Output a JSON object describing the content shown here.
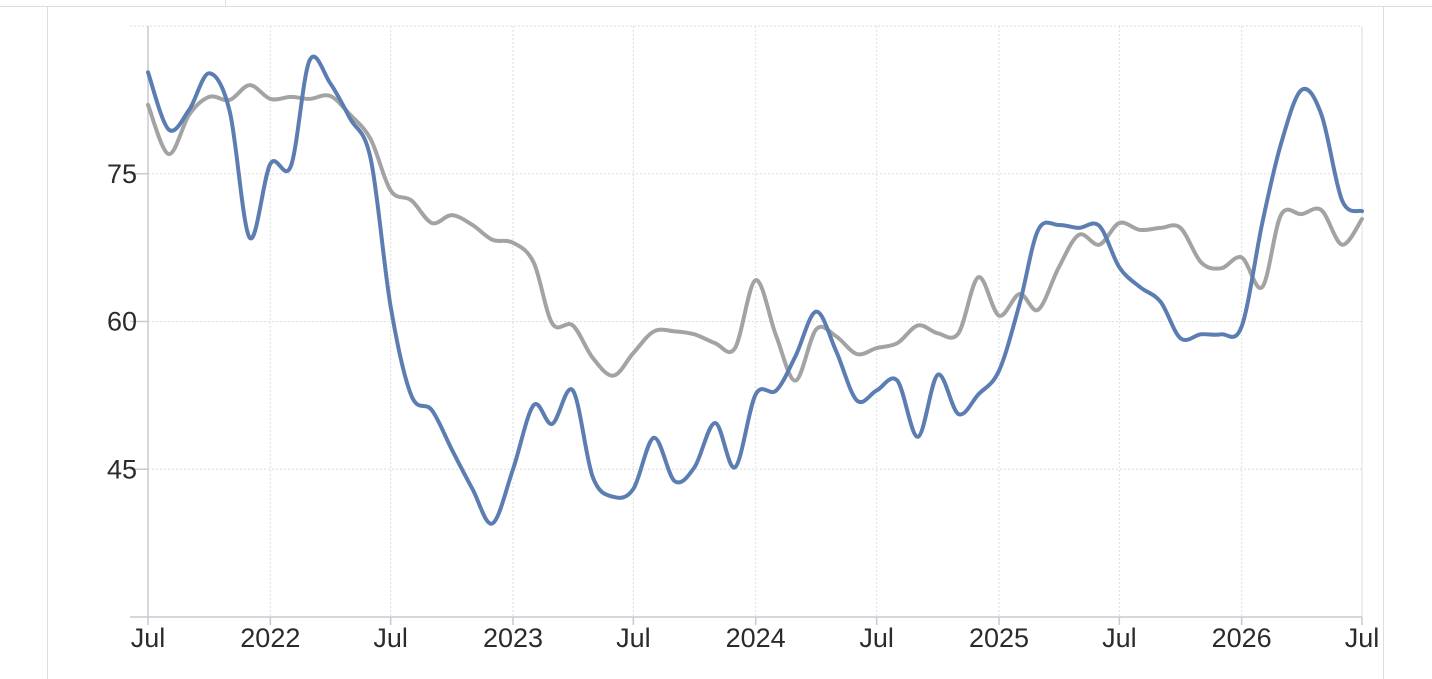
{
  "chart_data": {
    "type": "line",
    "title": "",
    "xlabel": "",
    "ylabel": "",
    "x_tick_labels": [
      "Jul",
      "2022",
      "Jul",
      "2023",
      "Jul",
      "2024",
      "Jul",
      "2025",
      "Jul",
      "2026",
      "Jul"
    ],
    "x_tick_dates": [
      "2021-07-01",
      "2022-01-01",
      "2022-07-01",
      "2023-01-01",
      "2023-07-01",
      "2024-01-01",
      "2024-07-01",
      "2025-01-01",
      "2025-07-01",
      "2026-01-01",
      "2026-07-01"
    ],
    "xlim": [
      "2021-07-01",
      "2026-07-01"
    ],
    "y_ticks": [
      45,
      60,
      75
    ],
    "ylim": [
      30,
      90
    ],
    "grid": true,
    "colors": {
      "series_blue": "#5b7db1",
      "series_gray": "#a3a3a3",
      "grid": "#dedede",
      "axis": "#c8c9d4"
    },
    "series": [
      {
        "color": "#5b7db1",
        "points": [
          [
            "2021-07-01",
            85.3
          ],
          [
            "2021-08-01",
            79.5
          ],
          [
            "2021-09-01",
            81.5
          ],
          [
            "2021-10-01",
            85.2
          ],
          [
            "2021-11-01",
            81.3
          ],
          [
            "2021-12-01",
            68.5
          ],
          [
            "2022-01-01",
            76.0
          ],
          [
            "2022-02-01",
            75.8
          ],
          [
            "2022-03-01",
            86.5
          ],
          [
            "2022-04-01",
            84.2
          ],
          [
            "2022-05-01",
            80.6
          ],
          [
            "2022-06-01",
            76.5
          ],
          [
            "2022-07-01",
            61.5
          ],
          [
            "2022-08-01",
            52.5
          ],
          [
            "2022-09-01",
            51.0
          ],
          [
            "2022-10-01",
            47.0
          ],
          [
            "2022-11-01",
            43.0
          ],
          [
            "2022-12-01",
            39.5
          ],
          [
            "2023-01-01",
            45.0
          ],
          [
            "2023-02-01",
            51.5
          ],
          [
            "2023-03-01",
            49.6
          ],
          [
            "2023-04-01",
            53.0
          ],
          [
            "2023-05-01",
            44.2
          ],
          [
            "2023-06-01",
            42.2
          ],
          [
            "2023-07-01",
            43.0
          ],
          [
            "2023-08-01",
            48.2
          ],
          [
            "2023-09-01",
            43.8
          ],
          [
            "2023-10-01",
            45.2
          ],
          [
            "2023-11-01",
            49.7
          ],
          [
            "2023-12-01",
            45.2
          ],
          [
            "2024-01-01",
            52.6
          ],
          [
            "2024-02-01",
            53.0
          ],
          [
            "2024-03-01",
            56.5
          ],
          [
            "2024-04-01",
            61.0
          ],
          [
            "2024-05-01",
            57.0
          ],
          [
            "2024-06-01",
            52.0
          ],
          [
            "2024-07-01",
            53.0
          ],
          [
            "2024-08-01",
            54.0
          ],
          [
            "2024-09-01",
            48.3
          ],
          [
            "2024-10-01",
            54.6
          ],
          [
            "2024-11-01",
            50.6
          ],
          [
            "2024-12-01",
            52.6
          ],
          [
            "2025-01-01",
            55.0
          ],
          [
            "2025-02-01",
            61.8
          ],
          [
            "2025-03-01",
            69.3
          ],
          [
            "2025-04-01",
            69.8
          ],
          [
            "2025-05-01",
            69.5
          ],
          [
            "2025-06-01",
            69.7
          ],
          [
            "2025-07-01",
            65.5
          ],
          [
            "2025-08-01",
            63.5
          ],
          [
            "2025-09-01",
            62.0
          ],
          [
            "2025-10-01",
            58.3
          ],
          [
            "2025-11-01",
            58.7
          ],
          [
            "2025-12-01",
            58.7
          ],
          [
            "2026-01-01",
            59.5
          ],
          [
            "2026-02-01",
            70.0
          ],
          [
            "2026-03-01",
            78.0
          ],
          [
            "2026-04-01",
            83.5
          ],
          [
            "2026-05-01",
            81.0
          ],
          [
            "2026-06-01",
            72.3
          ],
          [
            "2026-07-01",
            71.2
          ]
        ]
      },
      {
        "color": "#a3a3a3",
        "points": [
          [
            "2021-07-01",
            82.0
          ],
          [
            "2021-08-01",
            77.0
          ],
          [
            "2021-09-01",
            81.0
          ],
          [
            "2021-10-01",
            82.8
          ],
          [
            "2021-11-01",
            82.5
          ],
          [
            "2021-12-01",
            84.0
          ],
          [
            "2022-01-01",
            82.6
          ],
          [
            "2022-02-01",
            82.8
          ],
          [
            "2022-03-01",
            82.6
          ],
          [
            "2022-04-01",
            82.9
          ],
          [
            "2022-05-01",
            81.0
          ],
          [
            "2022-06-01",
            78.5
          ],
          [
            "2022-07-01",
            73.3
          ],
          [
            "2022-08-01",
            72.3
          ],
          [
            "2022-09-01",
            70.0
          ],
          [
            "2022-10-01",
            70.8
          ],
          [
            "2022-11-01",
            69.8
          ],
          [
            "2022-12-01",
            68.3
          ],
          [
            "2023-01-01",
            68.0
          ],
          [
            "2023-02-01",
            66.0
          ],
          [
            "2023-03-01",
            59.8
          ],
          [
            "2023-04-01",
            59.6
          ],
          [
            "2023-05-01",
            56.3
          ],
          [
            "2023-06-01",
            54.5
          ],
          [
            "2023-07-01",
            56.8
          ],
          [
            "2023-08-01",
            59.0
          ],
          [
            "2023-09-01",
            59.0
          ],
          [
            "2023-10-01",
            58.7
          ],
          [
            "2023-11-01",
            57.8
          ],
          [
            "2023-12-01",
            57.3
          ],
          [
            "2024-01-01",
            64.2
          ],
          [
            "2024-02-01",
            58.5
          ],
          [
            "2024-03-01",
            54.0
          ],
          [
            "2024-04-01",
            59.2
          ],
          [
            "2024-05-01",
            58.5
          ],
          [
            "2024-06-01",
            56.7
          ],
          [
            "2024-07-01",
            57.3
          ],
          [
            "2024-08-01",
            57.8
          ],
          [
            "2024-09-01",
            59.6
          ],
          [
            "2024-10-01",
            58.8
          ],
          [
            "2024-11-01",
            58.8
          ],
          [
            "2024-12-01",
            64.5
          ],
          [
            "2025-01-01",
            60.6
          ],
          [
            "2025-02-01",
            62.8
          ],
          [
            "2025-03-01",
            61.2
          ],
          [
            "2025-04-01",
            65.5
          ],
          [
            "2025-05-01",
            68.8
          ],
          [
            "2025-06-01",
            67.8
          ],
          [
            "2025-07-01",
            70.0
          ],
          [
            "2025-08-01",
            69.3
          ],
          [
            "2025-09-01",
            69.5
          ],
          [
            "2025-10-01",
            69.5
          ],
          [
            "2025-11-01",
            66.0
          ],
          [
            "2025-12-01",
            65.4
          ],
          [
            "2026-01-01",
            66.5
          ],
          [
            "2026-02-01",
            63.5
          ],
          [
            "2026-03-01",
            70.8
          ],
          [
            "2026-04-01",
            70.9
          ],
          [
            "2026-05-01",
            71.3
          ],
          [
            "2026-06-01",
            67.8
          ],
          [
            "2026-07-01",
            70.4
          ]
        ]
      }
    ]
  }
}
